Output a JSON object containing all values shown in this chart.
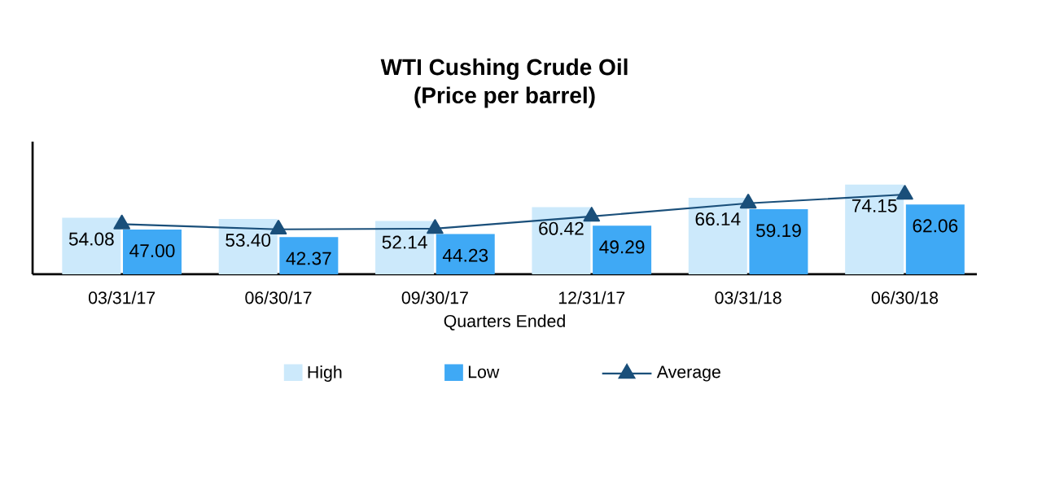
{
  "chart_data": {
    "type": "bar",
    "title": "WTI Cushing Crude Oil\n(Price per barrel)",
    "xlabel": "Quarters Ended",
    "categories": [
      "03/31/17",
      "06/30/17",
      "09/30/17",
      "12/31/17",
      "03/31/18",
      "06/30/18"
    ],
    "series": [
      {
        "name": "High",
        "color": "#cce9fb",
        "values": [
          54.08,
          53.4,
          52.14,
          60.42,
          66.14,
          74.15
        ],
        "value_labels": [
          "54.08",
          "53.40",
          "52.14",
          "60.42",
          "66.14",
          "74.15"
        ]
      },
      {
        "name": "Low",
        "color": "#3fa9f5",
        "values": [
          47.0,
          42.37,
          44.23,
          49.29,
          59.19,
          62.06
        ],
        "value_labels": [
          "47.00",
          "42.37",
          "44.23",
          "49.29",
          "59.19",
          "62.06"
        ]
      },
      {
        "name": "Average",
        "type": "line",
        "color": "#1a4f7a",
        "marker": "triangle",
        "values": [
          50.2,
          47.1,
          47.5,
          54.9,
          62.8,
          68.1
        ]
      }
    ],
    "ylim": [
      20,
      100
    ],
    "tick_labels": "x",
    "grid": false,
    "legend": "bottom"
  }
}
